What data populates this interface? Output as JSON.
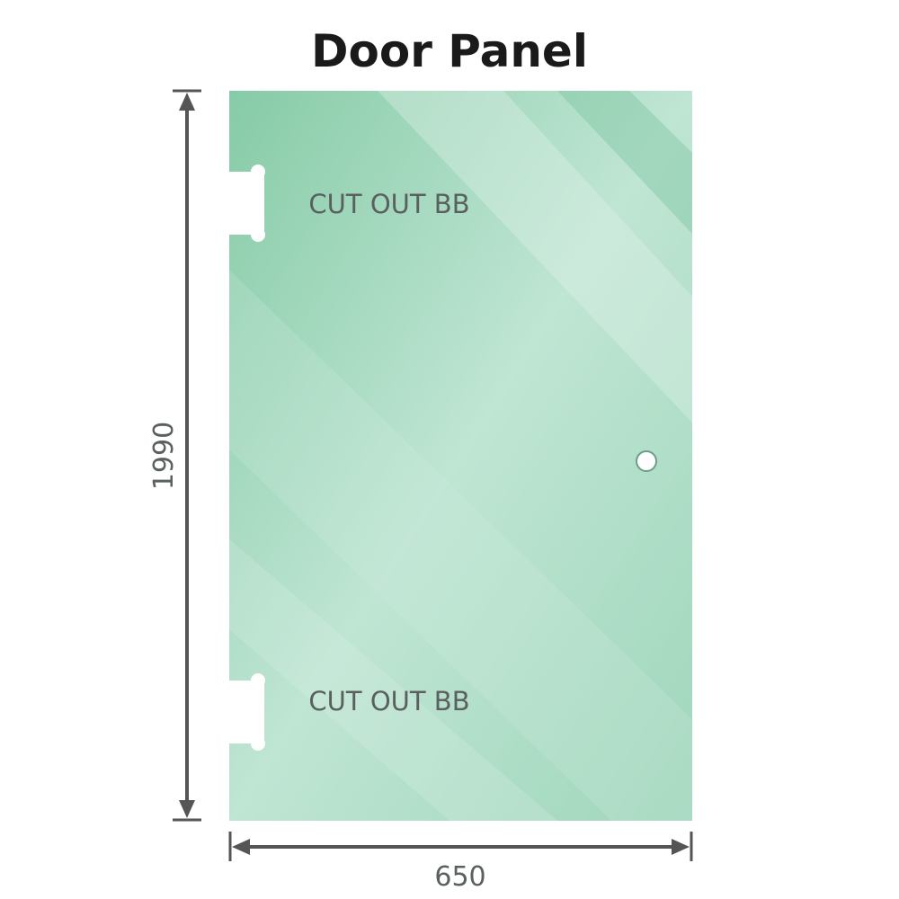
{
  "title": "Door Panel",
  "dimensions": {
    "height": "1990",
    "width": "650"
  },
  "cutouts": [
    {
      "label": "CUT OUT BB"
    },
    {
      "label": "CUT OUT BB"
    }
  ],
  "colors": {
    "glass": "#86cba7",
    "glass_light": "#bfe5d3",
    "dimension_line": "#555555",
    "text": "#5a6060"
  }
}
